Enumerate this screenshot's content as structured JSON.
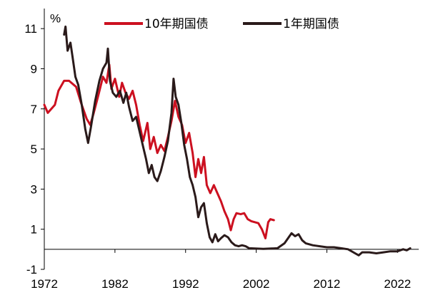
{
  "chart_data": {
    "type": "line",
    "y_unit": "%",
    "ylim": [
      -1,
      12
    ],
    "xlim": [
      1972,
      2025
    ],
    "y_ticks": [
      -1,
      1,
      3,
      5,
      7,
      9,
      11
    ],
    "x_ticks": [
      1972,
      1982,
      1992,
      2002,
      2012,
      2022
    ],
    "grid": false,
    "legend_position": "top",
    "series": [
      {
        "name": "10年期国债",
        "color": "#cc1020",
        "points": [
          [
            1972.0,
            7.2
          ],
          [
            1972.5,
            6.8
          ],
          [
            1973.5,
            7.2
          ],
          [
            1974.0,
            7.9
          ],
          [
            1974.8,
            8.4
          ],
          [
            1975.5,
            8.4
          ],
          [
            1976.5,
            8.1
          ],
          [
            1977.2,
            7.3
          ],
          [
            1978.0,
            6.5
          ],
          [
            1978.5,
            6.2
          ],
          [
            1979.0,
            6.8
          ],
          [
            1979.6,
            7.6
          ],
          [
            1980.3,
            8.6
          ],
          [
            1980.8,
            8.3
          ],
          [
            1981.2,
            9.2
          ],
          [
            1981.5,
            8.0
          ],
          [
            1982.0,
            8.5
          ],
          [
            1982.6,
            7.6
          ],
          [
            1983.0,
            8.3
          ],
          [
            1983.5,
            7.8
          ],
          [
            1984.0,
            7.5
          ],
          [
            1984.5,
            7.9
          ],
          [
            1985.0,
            7.2
          ],
          [
            1985.5,
            6.2
          ],
          [
            1986.0,
            5.4
          ],
          [
            1986.6,
            6.3
          ],
          [
            1987.0,
            5.0
          ],
          [
            1987.5,
            5.6
          ],
          [
            1988.0,
            4.8
          ],
          [
            1988.5,
            5.2
          ],
          [
            1989.0,
            4.9
          ],
          [
            1989.5,
            5.6
          ],
          [
            1990.0,
            6.4
          ],
          [
            1990.5,
            7.4
          ],
          [
            1991.0,
            6.6
          ],
          [
            1991.5,
            6.2
          ],
          [
            1992.0,
            5.3
          ],
          [
            1992.5,
            5.8
          ],
          [
            1993.0,
            4.8
          ],
          [
            1993.4,
            3.6
          ],
          [
            1993.8,
            4.5
          ],
          [
            1994.2,
            3.8
          ],
          [
            1994.6,
            4.6
          ],
          [
            1995.0,
            3.2
          ],
          [
            1995.5,
            2.8
          ],
          [
            1996.0,
            3.2
          ],
          [
            1996.5,
            2.8
          ],
          [
            1997.0,
            2.4
          ],
          [
            1997.5,
            1.9
          ],
          [
            1998.0,
            1.5
          ],
          [
            1998.4,
            0.95
          ],
          [
            1998.8,
            1.5
          ],
          [
            1999.2,
            1.8
          ],
          [
            1999.8,
            1.75
          ],
          [
            2000.3,
            1.8
          ],
          [
            2000.8,
            1.5
          ],
          [
            2001.3,
            1.4
          ],
          [
            2001.8,
            1.35
          ],
          [
            2002.3,
            1.3
          ],
          [
            2002.8,
            1.0
          ],
          [
            2003.3,
            0.55
          ],
          [
            2003.7,
            1.35
          ],
          [
            2004.0,
            1.5
          ],
          [
            2004.5,
            1.45
          ]
        ]
      },
      {
        "name": "1年期国债",
        "color": "#2a1a1a",
        "points": [
          [
            1974.8,
            10.7
          ],
          [
            1975.0,
            11.1
          ],
          [
            1975.3,
            9.9
          ],
          [
            1975.7,
            10.3
          ],
          [
            1976.0,
            9.6
          ],
          [
            1976.4,
            8.6
          ],
          [
            1976.8,
            8.2
          ],
          [
            1977.3,
            7.2
          ],
          [
            1977.8,
            6.0
          ],
          [
            1978.2,
            5.3
          ],
          [
            1978.6,
            6.1
          ],
          [
            1979.2,
            7.4
          ],
          [
            1979.8,
            8.4
          ],
          [
            1980.3,
            9.0
          ],
          [
            1980.8,
            9.3
          ],
          [
            1981.0,
            10.0
          ],
          [
            1981.3,
            8.4
          ],
          [
            1981.7,
            7.8
          ],
          [
            1982.2,
            7.6
          ],
          [
            1982.7,
            7.9
          ],
          [
            1983.2,
            7.3
          ],
          [
            1983.6,
            7.8
          ],
          [
            1984.0,
            7.1
          ],
          [
            1984.5,
            6.4
          ],
          [
            1985.0,
            6.6
          ],
          [
            1985.4,
            6.0
          ],
          [
            1986.0,
            5.1
          ],
          [
            1986.4,
            4.5
          ],
          [
            1986.8,
            3.8
          ],
          [
            1987.2,
            4.2
          ],
          [
            1987.6,
            3.6
          ],
          [
            1988.0,
            3.4
          ],
          [
            1988.5,
            3.9
          ],
          [
            1989.0,
            4.6
          ],
          [
            1989.5,
            5.4
          ],
          [
            1990.0,
            6.8
          ],
          [
            1990.3,
            8.5
          ],
          [
            1990.6,
            7.6
          ],
          [
            1991.0,
            7.2
          ],
          [
            1991.4,
            6.3
          ],
          [
            1991.8,
            5.2
          ],
          [
            1992.2,
            4.5
          ],
          [
            1992.6,
            3.6
          ],
          [
            1993.0,
            3.2
          ],
          [
            1993.4,
            2.6
          ],
          [
            1993.8,
            1.6
          ],
          [
            1994.2,
            2.1
          ],
          [
            1994.6,
            2.3
          ],
          [
            1995.0,
            1.3
          ],
          [
            1995.4,
            0.6
          ],
          [
            1995.8,
            0.35
          ],
          [
            1996.2,
            0.75
          ],
          [
            1996.6,
            0.4
          ],
          [
            1997.0,
            0.55
          ],
          [
            1997.5,
            0.7
          ],
          [
            1998.0,
            0.6
          ],
          [
            1998.5,
            0.35
          ],
          [
            1999.0,
            0.2
          ],
          [
            1999.5,
            0.15
          ],
          [
            2000.0,
            0.2
          ],
          [
            2000.5,
            0.15
          ],
          [
            2001.0,
            0.05
          ],
          [
            2003.0,
            0.02
          ],
          [
            2005.0,
            0.05
          ],
          [
            2006.0,
            0.3
          ],
          [
            2006.5,
            0.55
          ],
          [
            2007.0,
            0.8
          ],
          [
            2007.5,
            0.65
          ],
          [
            2008.0,
            0.75
          ],
          [
            2008.5,
            0.45
          ],
          [
            2009.0,
            0.3
          ],
          [
            2010.0,
            0.2
          ],
          [
            2011.0,
            0.15
          ],
          [
            2012.0,
            0.1
          ],
          [
            2013.0,
            0.1
          ],
          [
            2014.0,
            0.05
          ],
          [
            2015.0,
            0.0
          ],
          [
            2016.0,
            -0.2
          ],
          [
            2016.5,
            -0.3
          ],
          [
            2017.0,
            -0.15
          ],
          [
            2018.0,
            -0.15
          ],
          [
            2019.0,
            -0.2
          ],
          [
            2020.0,
            -0.15
          ],
          [
            2021.0,
            -0.1
          ],
          [
            2022.0,
            -0.1
          ],
          [
            2022.8,
            0.0
          ],
          [
            2023.3,
            -0.05
          ],
          [
            2023.8,
            0.05
          ]
        ]
      }
    ]
  }
}
